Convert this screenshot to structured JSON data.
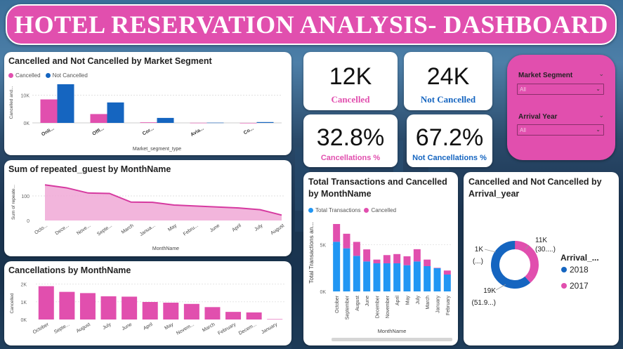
{
  "header": {
    "title": "HOTEL RESERVATION ANALYSIS- DASHBOARD"
  },
  "colors": {
    "pink": "#e14fae",
    "blue": "#1565c0",
    "bright_blue": "#2196f3",
    "area_fill": "#f0a8d6",
    "line": "#d63aa0"
  },
  "kpis": {
    "cancelled": {
      "value": "12K",
      "label": "Cancelled"
    },
    "not_cancelled": {
      "value": "24K",
      "label": "Not Cancelled"
    },
    "cancel_pct": {
      "value": "32.8%",
      "label": "Cancellations %"
    },
    "not_cancel_pct": {
      "value": "67.2%",
      "label": "Not Cancellations %"
    }
  },
  "slicers": {
    "market_segment": {
      "label": "Market Segment",
      "value": "All"
    },
    "arrival_year": {
      "label": "Arrival Year",
      "value": "All"
    }
  },
  "chart_data": [
    {
      "id": "market_segment",
      "type": "bar",
      "title": "Cancelled and Not Cancelled by Market Segment",
      "xlabel": "Market_segment_type",
      "ylabel": "Cancelled and...",
      "categories": [
        "Onli...",
        "Offl...",
        "Cor...",
        "Avia...",
        "Co..."
      ],
      "series": [
        {
          "name": "Cancelled",
          "values": [
            8500,
            3200,
            200,
            40,
            0
          ]
        },
        {
          "name": "Not Cancelled",
          "values": [
            14000,
            7400,
            1800,
            90,
            300
          ]
        }
      ],
      "yticks": [
        "0K",
        "10K"
      ],
      "ylim": [
        0,
        15000
      ]
    },
    {
      "id": "repeated_guest",
      "type": "area",
      "title": "Sum of repeated_guest by MonthName",
      "xlabel": "MonthName",
      "ylabel": "Sum of repeate...",
      "categories": [
        "Octo...",
        "Dece...",
        "Nove...",
        "Septe...",
        "March",
        "Janua...",
        "May",
        "Febru...",
        "June",
        "April",
        "July",
        "August"
      ],
      "values": [
        145,
        133,
        112,
        110,
        75,
        74,
        63,
        59,
        55,
        51,
        44,
        22
      ],
      "yticks": [
        "0",
        "100"
      ],
      "ylim": [
        0,
        160
      ]
    },
    {
      "id": "cancellations_month",
      "type": "bar",
      "title": "Cancellations by MonthName",
      "ylabel": "Cancelled",
      "categories": [
        "October",
        "Septe...",
        "August",
        "July",
        "June",
        "April",
        "May",
        "Novem...",
        "March",
        "February",
        "Decem...",
        "January"
      ],
      "values": [
        1880,
        1560,
        1490,
        1310,
        1290,
        990,
        950,
        880,
        700,
        430,
        400,
        20
      ],
      "yticks": [
        "0K",
        "1K",
        "2K"
      ],
      "ylim": [
        0,
        2100
      ]
    },
    {
      "id": "total_transactions",
      "type": "bar",
      "title": "Total Transactions and Cancelled by MonthName",
      "xlabel": "MonthName",
      "ylabel": "Total Transactions an...",
      "categories": [
        "October",
        "September",
        "August",
        "June",
        "December",
        "November",
        "April",
        "May",
        "July",
        "March",
        "January",
        "February"
      ],
      "series": [
        {
          "name": "Total Transactions",
          "values": [
            5300,
            4600,
            3800,
            3200,
            3000,
            3000,
            3000,
            2800,
            3200,
            2700,
            2500,
            1800
          ]
        },
        {
          "name": "Cancelled",
          "values": [
            1900,
            1560,
            1490,
            1290,
            400,
            880,
            990,
            950,
            1310,
            700,
            20,
            430
          ]
        }
      ],
      "yticks": [
        "0K",
        "5K"
      ],
      "ylim": [
        0,
        7500
      ]
    },
    {
      "id": "arrival_year",
      "type": "pie",
      "title": "Cancelled and Not Cancelled by Arrival_year",
      "legend_title": "Arrival_...",
      "slices": [
        {
          "name": "2018",
          "value": 19000,
          "label_top": "19K",
          "label_bottom": "(51.9...)"
        },
        {
          "name": "2017",
          "value": 11000,
          "label_top": "11K",
          "label_bottom": "(30....)"
        },
        {
          "name": "other",
          "value": 1000,
          "label_top": "1K",
          "label_bottom": "(...)"
        }
      ],
      "legend": [
        "2018",
        "2017"
      ]
    }
  ]
}
